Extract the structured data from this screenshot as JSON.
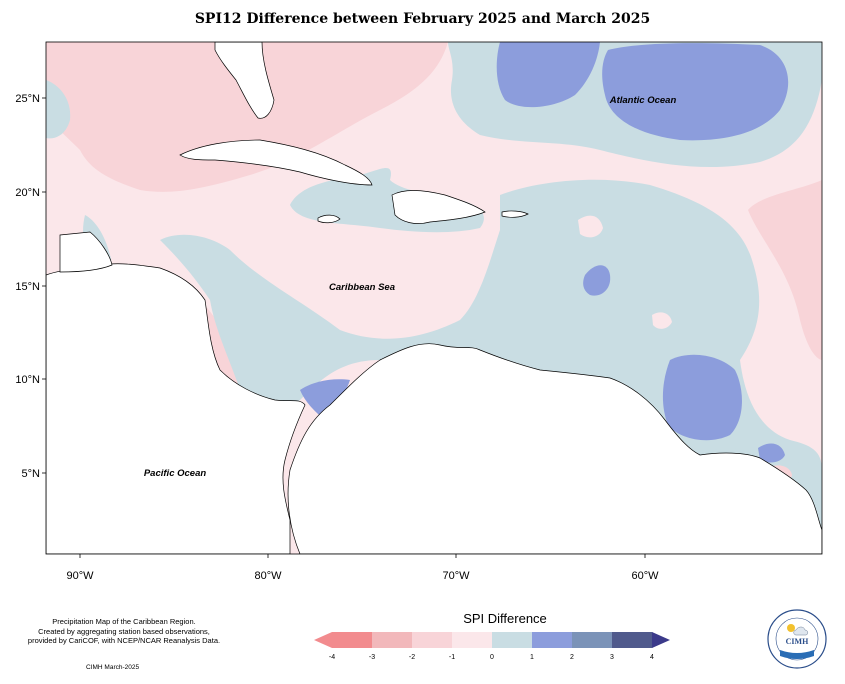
{
  "title": "SPI12 Difference between February 2025 and March 2025",
  "map": {
    "x_axis_labels": [
      "90°W",
      "80°W",
      "70°W",
      "60°W"
    ],
    "y_axis_labels": [
      "25°N",
      "20°N",
      "15°N",
      "10°N",
      "5°N"
    ],
    "place_labels": {
      "atlantic": "Atlantic Ocean",
      "caribbean": "Caribbean Sea",
      "pacific": "Pacific Ocean"
    },
    "extent": {
      "lon": [
        -92,
        -51
      ],
      "lat": [
        1,
        28
      ]
    }
  },
  "credits": {
    "line1": "Precipitation Map of the Caribbean Region.",
    "line2": "Created by aggregating station based observations,",
    "line3": "provided by CariCOF, with NCEP/NCAR Reanalysis Data.",
    "date": "CIMH March-2025"
  },
  "legend": {
    "title": "SPI Difference",
    "ticks": [
      "-4",
      "-3",
      "-2",
      "-1",
      "0",
      "1",
      "2",
      "3",
      "4"
    ],
    "colors": [
      "#f28b8e",
      "#f2b8bb",
      "#f8d4d8",
      "#fbe7ea",
      "#c9dde3",
      "#8c9ddc",
      "#7b93b8",
      "#505a8c",
      "#3b3a8a"
    ]
  },
  "logo": {
    "text": "CIMH"
  },
  "colors": {
    "land": "#ffffff",
    "dry_light": "#fbe7ea",
    "dry_medium": "#f8d4d8",
    "wet_light": "#c9dde3",
    "wet_medium": "#8c9ddc"
  }
}
